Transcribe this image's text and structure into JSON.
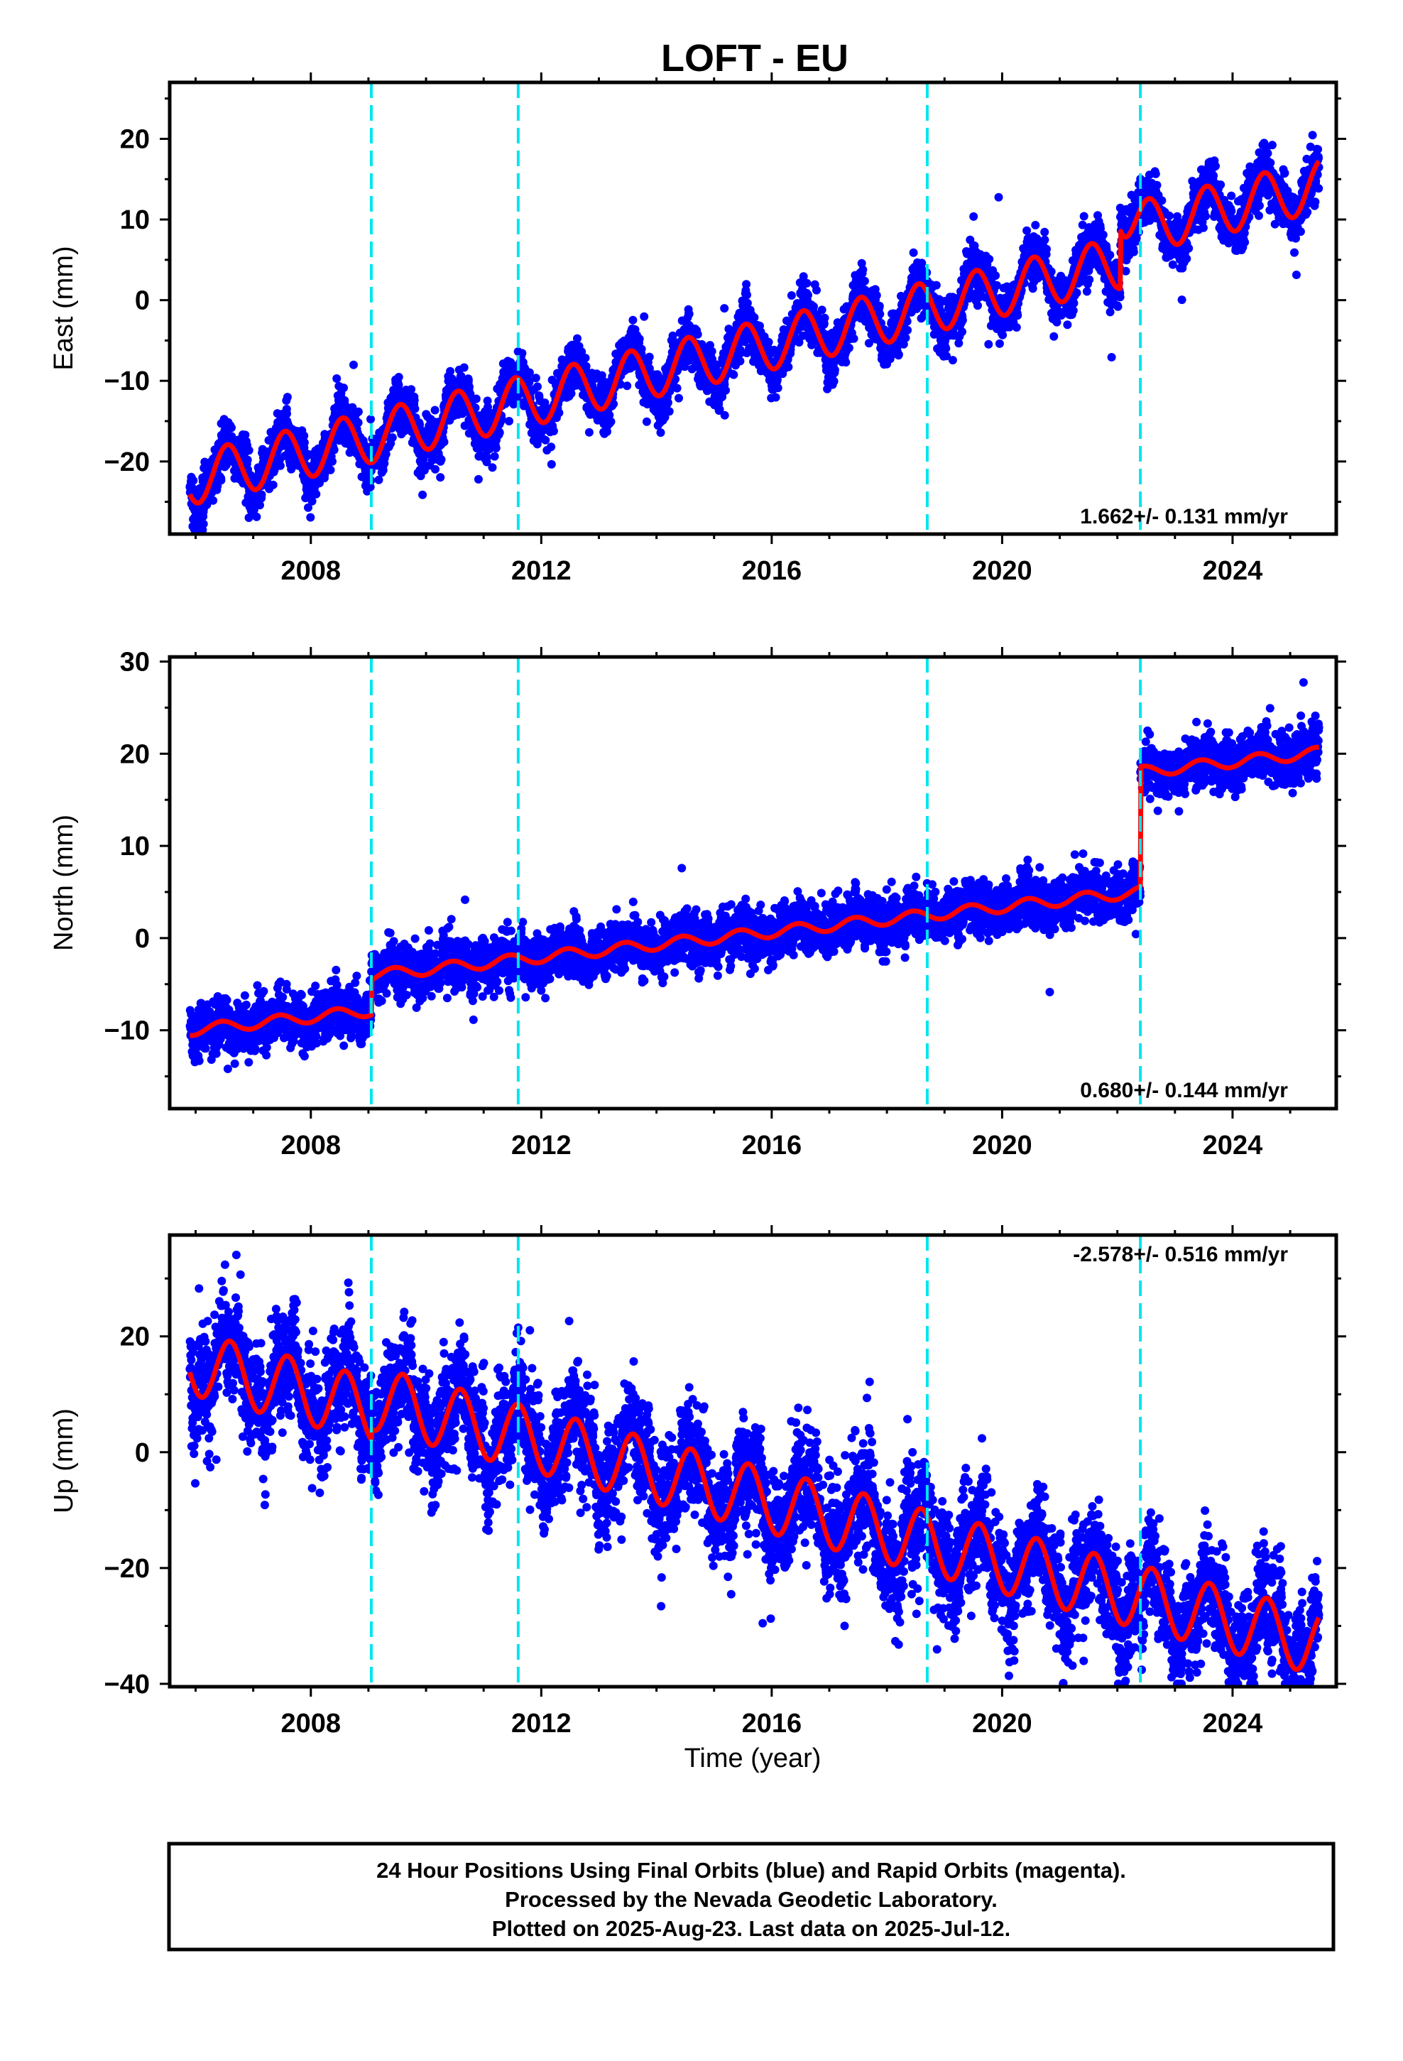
{
  "title": "LOFT - EU",
  "colors": {
    "data": "#0000ff",
    "model": "#ff0000",
    "event": "#00e5ee",
    "frame": "#000000"
  },
  "caption": {
    "line1": "24 Hour Positions Using Final Orbits (blue) and Rapid Orbits (magenta).",
    "line2": "Processed by the Nevada Geodetic Laboratory.",
    "line3": "Plotted on 2025-Aug-23. Last data on 2025-Jul-12."
  },
  "chart_data": [
    {
      "type": "scatter",
      "component": "east",
      "ylabel": "East (mm)",
      "xlabel": "",
      "xlim": [
        2005.55,
        2025.8
      ],
      "ylim": [
        -29,
        27
      ],
      "xticks": [
        2008,
        2012,
        2016,
        2020,
        2024
      ],
      "yticks": [
        -20,
        -10,
        0,
        10,
        20
      ],
      "rate_label": "1.662+/- 0.131 mm/yr",
      "rate_position": "bottom-right",
      "events": [
        2009.05,
        2011.6,
        2018.7,
        2022.4
      ],
      "model": {
        "start": 2005.9,
        "end": 2025.5,
        "offset": -22.2,
        "rate": 1.662,
        "annual_amp": 3.2,
        "peak_phase": 0.55,
        "steps": [
          {
            "year": 2022.05,
            "size": 3.8
          }
        ],
        "post_seismic": {
          "year": 2022.05,
          "amp": 3.5,
          "tau": 0.15
        }
      },
      "series": [
        {
          "name": "Final Orbits (blue)",
          "scatter_sd": 1.5,
          "extra_amp": 0.8
        },
        {
          "name": "model fit",
          "kind": "line"
        }
      ]
    },
    {
      "type": "scatter",
      "component": "north",
      "ylabel": "North (mm)",
      "xlabel": "",
      "xlim": [
        2005.55,
        2025.8
      ],
      "ylim": [
        -18.5,
        30.5
      ],
      "xticks": [
        2008,
        2012,
        2016,
        2020,
        2024
      ],
      "yticks": [
        -10,
        0,
        10,
        20,
        30
      ],
      "rate_label": "0.680+/- 0.144 mm/yr",
      "rate_position": "bottom-right",
      "events": [
        2009.05,
        2011.6,
        2018.7,
        2022.4
      ],
      "model": {
        "start": 2005.9,
        "end": 2025.5,
        "offset": -10.0,
        "rate": 0.68,
        "annual_amp": 0.6,
        "peak_phase": 0.45,
        "steps": [
          {
            "year": 2009.05,
            "size": 3.8
          },
          {
            "year": 2022.4,
            "size": 13.0
          }
        ],
        "post_seismic": {
          "year": 2022.4,
          "amp": 0.0,
          "tau": 0.3
        }
      },
      "series": [
        {
          "name": "Final Orbits (blue)",
          "scatter_sd": 1.3,
          "extra_amp": 0.6
        },
        {
          "name": "model fit",
          "kind": "line"
        }
      ]
    },
    {
      "type": "scatter",
      "component": "up",
      "ylabel": "Up (mm)",
      "xlabel": "Time (year)",
      "xlim": [
        2005.55,
        2025.8
      ],
      "ylim": [
        -40.5,
        37.5
      ],
      "xticks": [
        2008,
        2012,
        2016,
        2020,
        2024
      ],
      "yticks": [
        -40,
        -20,
        0,
        20
      ],
      "rate_label": "-2.578+/- 0.516 mm/yr",
      "rate_position": "top-right",
      "events": [
        2009.05,
        2011.6,
        2018.7,
        2022.4
      ],
      "model": {
        "start": 2005.9,
        "end": 2025.5,
        "offset": 15.5,
        "rate": -2.578,
        "annual_amp": 5.5,
        "peak_phase": 0.6,
        "steps": [
          {
            "year": 2009.05,
            "size": 2.0
          }
        ],
        "post_seismic": {
          "year": 2022.4,
          "amp": 0.0,
          "tau": 0.3
        }
      },
      "series": [
        {
          "name": "Final Orbits (blue)",
          "scatter_sd": 4.5,
          "extra_amp": 3.0
        },
        {
          "name": "model fit",
          "kind": "line"
        }
      ]
    }
  ]
}
